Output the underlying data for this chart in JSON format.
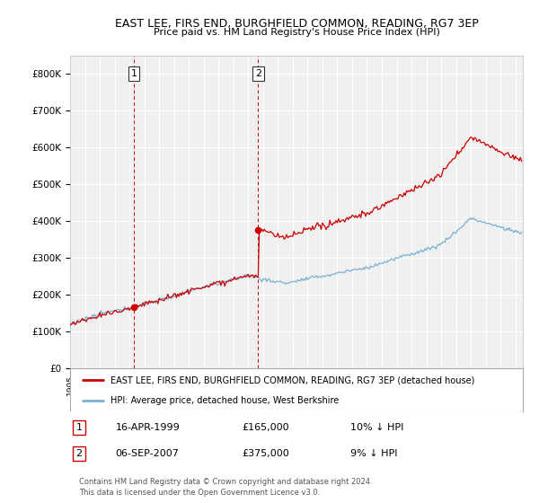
{
  "title": "EAST LEE, FIRS END, BURGHFIELD COMMON, READING, RG7 3EP",
  "subtitle": "Price paid vs. HM Land Registry's House Price Index (HPI)",
  "legend_line1": "EAST LEE, FIRS END, BURGHFIELD COMMON, READING, RG7 3EP (detached house)",
  "legend_line2": "HPI: Average price, detached house, West Berkshire",
  "annotation1_label": "1",
  "annotation1_date": "16-APR-1999",
  "annotation1_price": "£165,000",
  "annotation1_hpi": "10% ↓ HPI",
  "annotation2_label": "2",
  "annotation2_date": "06-SEP-2007",
  "annotation2_price": "£375,000",
  "annotation2_hpi": "9% ↓ HPI",
  "footnote": "Contains HM Land Registry data © Crown copyright and database right 2024.\nThis data is licensed under the Open Government Licence v3.0.",
  "red_color": "#cc0000",
  "blue_color": "#7ab0d4",
  "ylim": [
    0,
    850000
  ],
  "yticks": [
    0,
    100000,
    200000,
    300000,
    400000,
    500000,
    600000,
    700000,
    800000
  ],
  "background_color": "#ffffff",
  "plot_bg_color": "#f0f0f0",
  "sale1_year": 1999.29,
  "sale1_val": 165000,
  "sale2_year": 2007.67,
  "sale2_val": 375000
}
